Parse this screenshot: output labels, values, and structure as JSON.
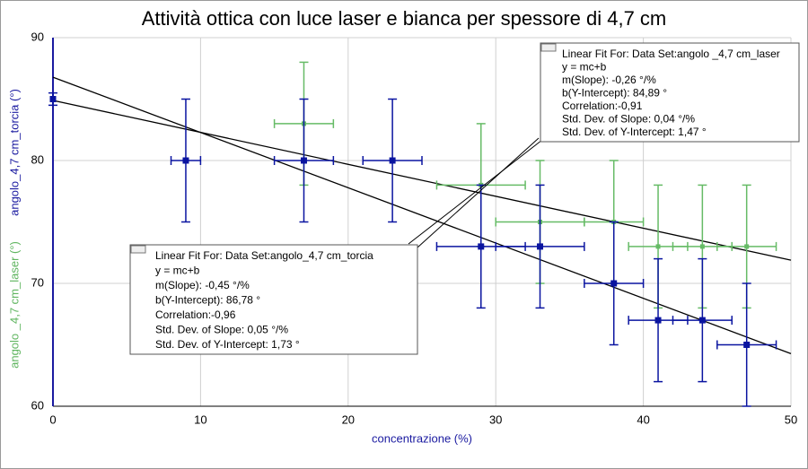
{
  "chart_data": {
    "type": "scatter",
    "title": "Attività ottica con luce laser e bianca per spessore di 4,7 cm",
    "x_label": "concentrazione (%)",
    "y_labels": [
      "angolo_4,7 cm_torcia (°)",
      "angolo _4,7 cm_laser (°)"
    ],
    "xlim": [
      0,
      50
    ],
    "ylim": [
      60,
      90
    ],
    "xticks": [
      0,
      10,
      20,
      30,
      40,
      50
    ],
    "yticks": [
      60,
      70,
      80,
      90
    ],
    "grid": true,
    "series": [
      {
        "name": "angolo_4,7 cm_laser",
        "color": "#66bb66",
        "x": [
          17,
          29,
          33,
          38,
          41,
          44,
          47
        ],
        "values": [
          83,
          78,
          75,
          75,
          73,
          73,
          73
        ],
        "x_err": [
          2,
          3,
          3,
          2,
          2,
          2,
          2
        ],
        "y_err": [
          5,
          5,
          5,
          5,
          5,
          5,
          5
        ]
      },
      {
        "name": "angolo_4,7 cm_torcia",
        "color": "#0a14a0",
        "x": [
          0,
          9,
          17,
          23,
          29,
          33,
          38,
          41,
          44,
          47
        ],
        "values": [
          85,
          80,
          80,
          80,
          73,
          73,
          70,
          67,
          67,
          65
        ],
        "x_err": [
          0,
          1,
          2,
          2,
          3,
          3,
          2,
          2,
          2,
          2
        ],
        "y_err": [
          0.5,
          5,
          5,
          5,
          5,
          5,
          5,
          5,
          5,
          5
        ]
      }
    ],
    "fit_lines": [
      {
        "x": [
          0,
          50
        ],
        "values": [
          84.89,
          71.89
        ]
      },
      {
        "x": [
          0,
          50
        ],
        "values": [
          86.78,
          64.28
        ]
      }
    ],
    "annotations": [
      {
        "lines": [
          "Linear Fit For:  Data Set:angolo _4,7 cm_laser",
          "y = mc+b",
          "m(Slope): -0,26 °/%",
          "b(Y-Intercept): 84,89 °",
          "Correlation:-0,91",
          "Std. Dev. of Slope: 0,04 °/%",
          "Std. Dev. of Y-Intercept: 1,47 °"
        ]
      },
      {
        "lines": [
          "Linear Fit For:  Data Set:angolo_4,7 cm_torcia",
          "y = mc+b",
          "m(Slope): -0,45 °/%",
          "b(Y-Intercept): 86,78 °",
          "Correlation:-0,96",
          "Std. Dev. of Slope: 0,05 °/%",
          "Std. Dev. of Y-Intercept: 1,73 °"
        ]
      }
    ]
  }
}
